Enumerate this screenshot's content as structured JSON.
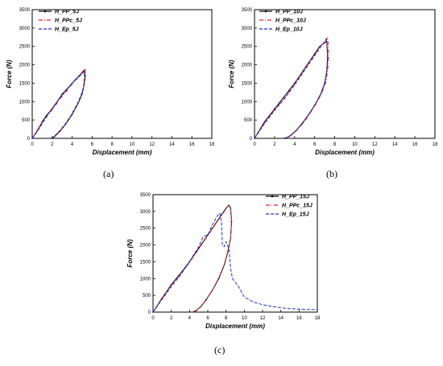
{
  "colors": {
    "H_PP": "#000000",
    "H_PPc": "#e8202a",
    "H_Ep": "#1a2fd6"
  },
  "chart_data": [
    {
      "type": "line",
      "panel_label": "(a)",
      "xlabel": "Displacement (mm)",
      "ylabel": "Force (N)",
      "xlim": [
        0,
        18
      ],
      "ylim": [
        0,
        3500
      ],
      "xticks": [
        "0",
        "2",
        "4",
        "6",
        "8",
        "10",
        "12",
        "14",
        "16",
        "18"
      ],
      "yticks": [
        "0",
        "500",
        "1000",
        "1500",
        "2000",
        "2500",
        "3000",
        "3500"
      ],
      "legend_position": "top-left",
      "series": [
        {
          "name": "H_PP_5J",
          "color_key": "H_PP",
          "style": "solid-marker",
          "x": [
            0,
            0.5,
            1,
            1.5,
            2,
            2.5,
            3,
            3.5,
            4,
            4.5,
            5,
            5.2,
            5.3,
            5.2,
            5.0,
            4.6,
            4.0,
            3.4,
            2.8,
            2.3,
            2.0
          ],
          "y": [
            0,
            200,
            450,
            650,
            800,
            1000,
            1200,
            1350,
            1500,
            1650,
            1780,
            1850,
            1700,
            1450,
            1200,
            950,
            650,
            400,
            200,
            60,
            0
          ]
        },
        {
          "name": "H_PPc_5J",
          "color_key": "H_PPc",
          "style": "dash-dot",
          "x": [
            0,
            0.5,
            1,
            1.5,
            2,
            2.5,
            3,
            3.5,
            4,
            4.5,
            5,
            5.3,
            5.35,
            5.25,
            5.0,
            4.6,
            4.0,
            3.4,
            2.8,
            2.3,
            2.0
          ],
          "y": [
            0,
            220,
            430,
            600,
            780,
            960,
            1150,
            1300,
            1480,
            1640,
            1800,
            1900,
            1750,
            1480,
            1220,
            960,
            660,
            410,
            210,
            70,
            0
          ]
        },
        {
          "name": "H_Ep_5J",
          "color_key": "H_Ep",
          "style": "dash",
          "x": [
            0,
            0.5,
            1,
            1.5,
            2,
            2.5,
            3,
            3.5,
            4,
            4.5,
            5,
            5.2,
            5.25,
            5.15,
            4.9,
            4.5,
            3.9,
            3.3,
            2.7,
            2.2,
            1.9
          ],
          "y": [
            0,
            180,
            400,
            620,
            820,
            1000,
            1180,
            1330,
            1500,
            1620,
            1760,
            1820,
            1680,
            1420,
            1180,
            930,
            630,
            390,
            190,
            60,
            0
          ]
        }
      ]
    },
    {
      "type": "line",
      "panel_label": "(b)",
      "xlabel": "Displacement (mm)",
      "ylabel": "Force (N)",
      "xlim": [
        0,
        18
      ],
      "ylim": [
        0,
        3500
      ],
      "xticks": [
        "0",
        "2",
        "4",
        "6",
        "8",
        "10",
        "12",
        "14",
        "16",
        "18"
      ],
      "yticks": [
        "0",
        "500",
        "1000",
        "1500",
        "2000",
        "2500",
        "3000",
        "3500"
      ],
      "legend_position": "top-left",
      "series": [
        {
          "name": "H_PP_10J",
          "color_key": "H_PP",
          "style": "solid-marker",
          "x": [
            0,
            1,
            2,
            3,
            4,
            5,
            6,
            6.5,
            7,
            7.2,
            7.3,
            7.2,
            7.0,
            6.6,
            6.0,
            5.4,
            4.8,
            4.2,
            3.7,
            3.3,
            3.0
          ],
          "y": [
            0,
            450,
            800,
            1150,
            1500,
            1900,
            2300,
            2500,
            2600,
            2650,
            2200,
            1800,
            1500,
            1200,
            900,
            650,
            420,
            230,
            100,
            30,
            0
          ]
        },
        {
          "name": "H_PPc_10J",
          "color_key": "H_PPc",
          "style": "dash-dot",
          "x": [
            0,
            1,
            2,
            3,
            4,
            5,
            6,
            6.5,
            7,
            7.3,
            7.4,
            7.3,
            7.1,
            6.7,
            6.1,
            5.5,
            4.9,
            4.3,
            3.8,
            3.4,
            3.1
          ],
          "y": [
            0,
            420,
            780,
            1100,
            1480,
            1880,
            2280,
            2480,
            2650,
            2750,
            2300,
            1850,
            1520,
            1220,
            920,
            660,
            430,
            240,
            110,
            35,
            0
          ]
        },
        {
          "name": "H_Ep_10J",
          "color_key": "H_Ep",
          "style": "dash",
          "x": [
            0,
            1,
            2,
            3,
            4,
            5,
            6,
            6.5,
            7,
            7.2,
            7.3,
            7.2,
            7.0,
            6.6,
            6.0,
            5.4,
            4.8,
            4.2,
            3.7,
            3.3,
            3.0
          ],
          "y": [
            0,
            400,
            760,
            1080,
            1450,
            1850,
            2250,
            2450,
            2620,
            2700,
            2250,
            1820,
            1500,
            1200,
            900,
            650,
            420,
            230,
            100,
            30,
            0
          ]
        }
      ]
    },
    {
      "type": "line",
      "panel_label": "(c)",
      "xlabel": "Displacement (mm)",
      "ylabel": "Force (N)",
      "xlim": [
        0,
        18
      ],
      "ylim": [
        0,
        3500
      ],
      "xticks": [
        "0",
        "2",
        "4",
        "6",
        "8",
        "10",
        "12",
        "14",
        "16",
        "18"
      ],
      "yticks": [
        "0",
        "500",
        "1000",
        "1500",
        "2000",
        "2500",
        "3000",
        "3500"
      ],
      "legend_position": "top-right",
      "series": [
        {
          "name": "H_PP_15J",
          "color_key": "H_PP",
          "style": "solid-marker",
          "x": [
            0,
            1,
            2,
            3,
            4,
            5,
            6,
            7,
            7.5,
            8,
            8.3,
            8.5,
            8.6,
            8.5,
            8.2,
            7.8,
            7.2,
            6.5,
            5.8,
            5.2,
            4.7,
            4.3
          ],
          "y": [
            0,
            420,
            820,
            1150,
            1500,
            1900,
            2300,
            2700,
            2900,
            3100,
            3180,
            3100,
            2700,
            2200,
            1800,
            1400,
            1000,
            650,
            360,
            150,
            40,
            0
          ]
        },
        {
          "name": "H_PPc_15J",
          "color_key": "H_PPc",
          "style": "dash-dot",
          "x": [
            0,
            1,
            2,
            3,
            4,
            5,
            6,
            7,
            7.5,
            8,
            8.3,
            8.5,
            8.6,
            8.5,
            8.2,
            7.8,
            7.2,
            6.5,
            5.8,
            5.2,
            4.7,
            4.3
          ],
          "y": [
            0,
            400,
            800,
            1120,
            1480,
            1880,
            2280,
            2680,
            2880,
            3080,
            3200,
            3120,
            2720,
            2220,
            1820,
            1420,
            1020,
            660,
            370,
            160,
            45,
            0
          ]
        },
        {
          "name": "H_Ep_15J",
          "color_key": "H_Ep",
          "style": "dash",
          "x": [
            0,
            1,
            2,
            3,
            4,
            5,
            5.5,
            6,
            6.5,
            7,
            7.3,
            7.5,
            7.6,
            7.8,
            8.0,
            8.3,
            8.5,
            8.7,
            9.0,
            9.5,
            10,
            11,
            12,
            13,
            14,
            15,
            16,
            17,
            18
          ],
          "y": [
            0,
            380,
            760,
            1100,
            1500,
            1950,
            2250,
            2300,
            2600,
            2850,
            2950,
            2700,
            2000,
            1950,
            2100,
            1900,
            1300,
            1000,
            900,
            700,
            450,
            300,
            220,
            170,
            130,
            100,
            90,
            80,
            75
          ]
        }
      ]
    }
  ]
}
